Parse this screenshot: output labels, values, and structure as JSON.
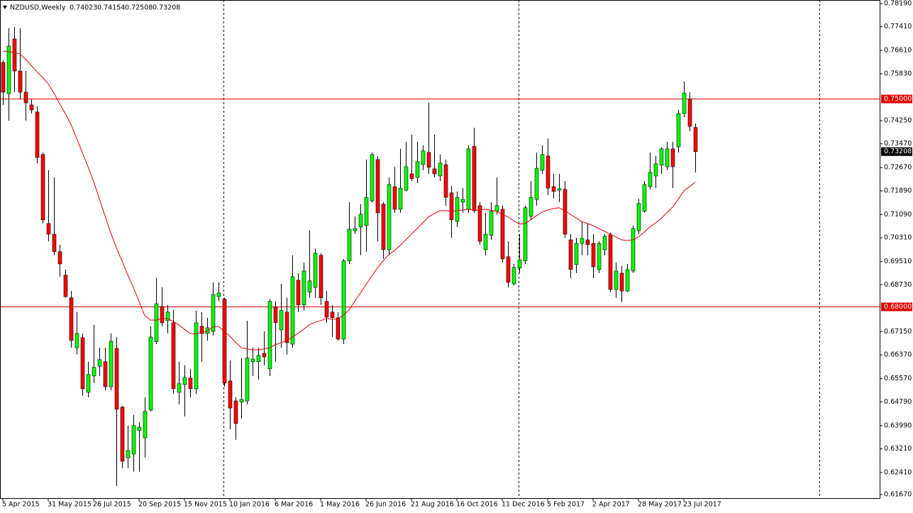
{
  "chart_data": {
    "type": "candlestick",
    "title": "NZDUSD,Weekly",
    "categories": [
      "5 Apr 2015",
      null,
      null,
      null,
      null,
      null,
      null,
      null,
      "31 May 2015",
      null,
      null,
      null,
      null,
      null,
      null,
      null,
      "26 Jul 2015",
      null,
      null,
      null,
      null,
      null,
      null,
      null,
      "20 Sep 2015",
      null,
      null,
      null,
      null,
      null,
      null,
      null,
      "15 Nov 2015",
      null,
      null,
      null,
      null,
      null,
      null,
      null,
      "10 Jan 2016",
      null,
      null,
      null,
      null,
      null,
      null,
      null,
      "6 Mar 2016",
      null,
      null,
      null,
      null,
      null,
      null,
      null,
      "1 May 2016",
      null,
      null,
      null,
      null,
      null,
      null,
      null,
      "26 Jun 2016",
      null,
      null,
      null,
      null,
      null,
      null,
      null,
      "21 Aug 2016",
      null,
      null,
      null,
      null,
      null,
      null,
      null,
      "16 Oct 2016",
      null,
      null,
      null,
      null,
      null,
      null,
      null,
      "11 Dec 2016",
      null,
      null,
      null,
      null,
      null,
      null,
      null,
      "5 Feb 2017",
      null,
      null,
      null,
      null,
      null,
      null,
      null,
      "2 Apr 2017",
      null,
      null,
      null,
      null,
      null,
      null,
      null,
      "28 May 2017",
      null,
      null,
      null,
      null,
      null,
      null,
      null,
      "23 Jul 2017",
      null,
      null
    ],
    "open": [
      0.7621,
      0.7516,
      0.77,
      0.7592,
      0.7521,
      0.7478,
      0.7454,
      0.7311,
      0.7079,
      0.7043,
      0.6984,
      0.6905,
      0.6829,
      0.6661,
      0.6695,
      0.6511,
      0.6566,
      0.6599,
      0.6614,
      0.653,
      0.6659,
      0.6461,
      0.6291,
      0.6303,
      0.6382,
      0.6358,
      0.6451,
      0.6681,
      0.68,
      0.6752,
      0.6745,
      0.6511,
      0.6537,
      0.6559,
      0.6523,
      0.6733,
      0.6709,
      0.6716,
      0.6833,
      0.6824,
      0.6549,
      0.6482,
      0.6478,
      0.6482,
      0.6614,
      0.6614,
      0.6642,
      0.659,
      0.6797,
      0.6721,
      0.6781,
      0.6673,
      0.6888,
      0.6805,
      0.6848,
      0.6864,
      0.6972,
      0.6817,
      0.6781,
      0.6762,
      0.669,
      0.6953,
      0.7055,
      0.7067,
      0.7072,
      0.7155,
      0.7294,
      0.7144,
      0.6991,
      0.7203,
      0.7127,
      0.7191,
      0.7246,
      0.7234,
      0.7277,
      0.7318,
      0.7263,
      0.7239,
      0.7277,
      0.7182,
      0.7086,
      0.7151,
      0.7127,
      0.7339,
      0.7139,
      0.6991,
      0.7039,
      0.712,
      0.7127,
      0.6967,
      0.6876,
      0.6929,
      0.6953,
      0.7103,
      0.716,
      0.7258,
      0.7306,
      0.7203,
      0.7191,
      0.7194,
      0.7024,
      0.6941,
      0.7012,
      0.7024,
      0.7012,
      0.6924,
      0.6991,
      0.7041,
      0.6857,
      0.6912,
      0.6852,
      0.6919,
      0.7055,
      0.712,
      0.7203,
      0.7239,
      0.7275,
      0.727,
      0.733,
      0.7337,
      0.7449,
      0.7497,
      0.74023
    ],
    "high": [
      0.7628,
      0.7736,
      0.774,
      0.7736,
      0.7592,
      0.7497,
      0.7473,
      0.7318,
      0.7258,
      0.7234,
      0.7008,
      0.6924,
      0.6852,
      0.6781,
      0.6709,
      0.6614,
      0.6738,
      0.6661,
      0.6661,
      0.6709,
      0.6697,
      0.6466,
      0.6399,
      0.6435,
      0.6411,
      0.6494,
      0.6733,
      0.6895,
      0.6864,
      0.6805,
      0.6788,
      0.6614,
      0.6602,
      0.659,
      0.6786,
      0.6781,
      0.6762,
      0.6881,
      0.6881,
      0.6829,
      0.6618,
      0.6494,
      0.6626,
      0.6752,
      0.6661,
      0.6661,
      0.6716,
      0.6824,
      0.6817,
      0.6876,
      0.6829,
      0.6972,
      0.6912,
      0.6948,
      0.7055,
      0.6995,
      0.6979,
      0.6852,
      0.6805,
      0.6781,
      0.696,
      0.7151,
      0.7103,
      0.7144,
      0.7294,
      0.7318,
      0.7306,
      0.7151,
      0.7234,
      0.727,
      0.733,
      0.7354,
      0.7378,
      0.7354,
      0.7342,
      0.7485,
      0.7378,
      0.7311,
      0.7294,
      0.7206,
      0.7187,
      0.7198,
      0.7342,
      0.7401,
      0.7151,
      0.7115,
      0.7151,
      0.7234,
      0.7139,
      0.7019,
      0.6943,
      0.7043,
      0.7139,
      0.7222,
      0.7318,
      0.7342,
      0.7365,
      0.7246,
      0.7246,
      0.7222,
      0.7043,
      0.7031,
      0.7086,
      0.7079,
      0.7043,
      0.7019,
      0.7043,
      0.7048,
      0.6948,
      0.6936,
      0.6943,
      0.7072,
      0.7163,
      0.7222,
      0.7318,
      0.7306,
      0.7335,
      0.7354,
      0.7354,
      0.7461,
      0.7557,
      0.7521,
      0.74154
    ],
    "low": [
      0.7478,
      0.7425,
      0.7521,
      0.7497,
      0.7425,
      0.7449,
      0.7282,
      0.7079,
      0.7019,
      0.6972,
      0.69,
      0.6829,
      0.6661,
      0.6638,
      0.6499,
      0.6494,
      0.6542,
      0.6566,
      0.6518,
      0.6518,
      0.6196,
      0.6256,
      0.6256,
      0.6244,
      0.6244,
      0.6291,
      0.6447,
      0.6673,
      0.6733,
      0.6709,
      0.6506,
      0.647,
      0.643,
      0.6494,
      0.6506,
      0.6614,
      0.6685,
      0.6702,
      0.6817,
      0.653,
      0.6387,
      0.6351,
      0.6423,
      0.647,
      0.6566,
      0.6554,
      0.6602,
      0.6566,
      0.6614,
      0.6661,
      0.6638,
      0.6661,
      0.6781,
      0.6786,
      0.6829,
      0.6829,
      0.6805,
      0.6745,
      0.6697,
      0.6685,
      0.6673,
      0.6943,
      0.7043,
      0.6972,
      0.6984,
      0.7151,
      0.7019,
      0.696,
      0.6972,
      0.7115,
      0.7115,
      0.7187,
      0.7222,
      0.7215,
      0.7258,
      0.7246,
      0.7234,
      0.7222,
      0.7139,
      0.7031,
      0.7067,
      0.7115,
      0.7115,
      0.7115,
      0.7008,
      0.6972,
      0.7024,
      0.711,
      0.6948,
      0.6864,
      0.6871,
      0.6912,
      0.6943,
      0.7091,
      0.7139,
      0.7246,
      0.7175,
      0.7163,
      0.7151,
      0.7031,
      0.6895,
      0.6912,
      0.6972,
      0.6972,
      0.6895,
      0.6912,
      0.6972,
      0.6848,
      0.6829,
      0.6814,
      0.6848,
      0.6912,
      0.7043,
      0.7115,
      0.7194,
      0.7198,
      0.7246,
      0.7258,
      0.7198,
      0.7318,
      0.7437,
      0.7389,
      0.72508
    ],
    "close": [
      0.7521,
      0.7676,
      0.7592,
      0.7521,
      0.7485,
      0.7461,
      0.7301,
      0.7091,
      0.7043,
      0.6984,
      0.6943,
      0.6833,
      0.6685,
      0.6709,
      0.6523,
      0.6571,
      0.6595,
      0.6621,
      0.653,
      0.6683,
      0.6454,
      0.6279,
      0.6315,
      0.6399,
      0.6394,
      0.6447,
      0.6697,
      0.6809,
      0.6745,
      0.6781,
      0.6523,
      0.654,
      0.6561,
      0.6523,
      0.6745,
      0.6709,
      0.6728,
      0.684,
      0.6845,
      0.6542,
      0.6458,
      0.6406,
      0.6487,
      0.6626,
      0.6623,
      0.6635,
      0.663,
      0.6817,
      0.6745,
      0.6786,
      0.6678,
      0.69,
      0.6805,
      0.6919,
      0.6886,
      0.6979,
      0.6829,
      0.6764,
      0.6762,
      0.669,
      0.6953,
      0.706,
      0.7062,
      0.711,
      0.7167,
      0.7311,
      0.7115,
      0.6991,
      0.721,
      0.7127,
      0.7198,
      0.727,
      0.723,
      0.7287,
      0.7323,
      0.7268,
      0.7246,
      0.7282,
      0.7167,
      0.7091,
      0.7167,
      0.716,
      0.733,
      0.7122,
      0.7019,
      0.7043,
      0.712,
      0.7139,
      0.696,
      0.6881,
      0.6931,
      0.6957,
      0.7132,
      0.7167,
      0.7265,
      0.7311,
      0.7198,
      0.7187,
      0.7196,
      0.7043,
      0.6924,
      0.7012,
      0.7029,
      0.7008,
      0.6933,
      0.7012,
      0.7036,
      0.6857,
      0.6919,
      0.6852,
      0.6924,
      0.7062,
      0.7146,
      0.721,
      0.7251,
      0.728,
      0.733,
      0.733,
      0.727,
      0.7449,
      0.7518,
      0.7406,
      0.73208
    ],
    "up_color": "#00ff00",
    "down_color": "#ff0000",
    "ma": {
      "color": "#e00000",
      "values": [
        0.7659,
        0.7657,
        0.7654,
        0.765,
        0.7631,
        0.7611,
        0.759,
        0.7571,
        0.7549,
        0.7518,
        0.7482,
        0.7449,
        0.7413,
        0.7366,
        0.7318,
        0.727,
        0.722,
        0.7163,
        0.7105,
        0.7048,
        0.6998,
        0.6953,
        0.6907,
        0.6864,
        0.6817,
        0.6769,
        0.6754,
        0.6754,
        0.6759,
        0.6759,
        0.675,
        0.6738,
        0.6723,
        0.6709,
        0.6707,
        0.6712,
        0.6716,
        0.6731,
        0.6733,
        0.6716,
        0.67,
        0.668,
        0.6661,
        0.6657,
        0.6654,
        0.6654,
        0.6657,
        0.6661,
        0.6671,
        0.6678,
        0.6685,
        0.6697,
        0.6709,
        0.6723,
        0.6738,
        0.6747,
        0.6752,
        0.6759,
        0.6757,
        0.6757,
        0.6771,
        0.6788,
        0.6817,
        0.6845,
        0.6874,
        0.6902,
        0.6929,
        0.6953,
        0.6974,
        0.6988,
        0.7005,
        0.7024,
        0.7043,
        0.7062,
        0.7081,
        0.7101,
        0.7112,
        0.7122,
        0.7122,
        0.712,
        0.7122,
        0.7124,
        0.7127,
        0.7124,
        0.7124,
        0.7127,
        0.7124,
        0.712,
        0.711,
        0.7101,
        0.7089,
        0.7077,
        0.7079,
        0.7091,
        0.7105,
        0.7117,
        0.7124,
        0.7129,
        0.7132,
        0.7122,
        0.711,
        0.7098,
        0.7086,
        0.7079,
        0.7072,
        0.7062,
        0.7053,
        0.7043,
        0.7034,
        0.7024,
        0.7022,
        0.7024,
        0.7034,
        0.705,
        0.7067,
        0.7081,
        0.7096,
        0.7115,
        0.7134,
        0.716,
        0.7189,
        0.7203,
        0.7218
      ]
    },
    "hlines": [
      {
        "value": 0.75,
        "label": "0.75000"
      },
      {
        "value": 0.68,
        "label": "0.68000"
      }
    ],
    "hline_color": "#e00000",
    "ylim": [
      0.6155,
      0.7831
    ],
    "yticks": [
      {
        "value": 0.7819,
        "label": "0.78190"
      },
      {
        "value": 0.7741,
        "label": "0.77410"
      },
      {
        "value": 0.7661,
        "label": "0.76610"
      },
      {
        "value": 0.7583,
        "label": "0.75830"
      },
      {
        "value": 0.7425,
        "label": "0.74250"
      },
      {
        "value": 0.7347,
        "label": "0.73470"
      },
      {
        "value": 0.7267,
        "label": "0.72670"
      },
      {
        "value": 0.7189,
        "label": "0.71890"
      },
      {
        "value": 0.7109,
        "label": "0.71090"
      },
      {
        "value": 0.7031,
        "label": "0.70310"
      },
      {
        "value": 0.6951,
        "label": "0.69510"
      },
      {
        "value": 0.6873,
        "label": "0.68730"
      },
      {
        "value": 0.6715,
        "label": "0.67150"
      },
      {
        "value": 0.6637,
        "label": "0.66370"
      },
      {
        "value": 0.6557,
        "label": "0.65570"
      },
      {
        "value": 0.6479,
        "label": "0.64790"
      },
      {
        "value": 0.6399,
        "label": "0.63990"
      },
      {
        "value": 0.6321,
        "label": "0.63210"
      },
      {
        "value": 0.6241,
        "label": "0.62410"
      },
      {
        "value": 0.6167,
        "label": "0.61670"
      }
    ]
  }
}
